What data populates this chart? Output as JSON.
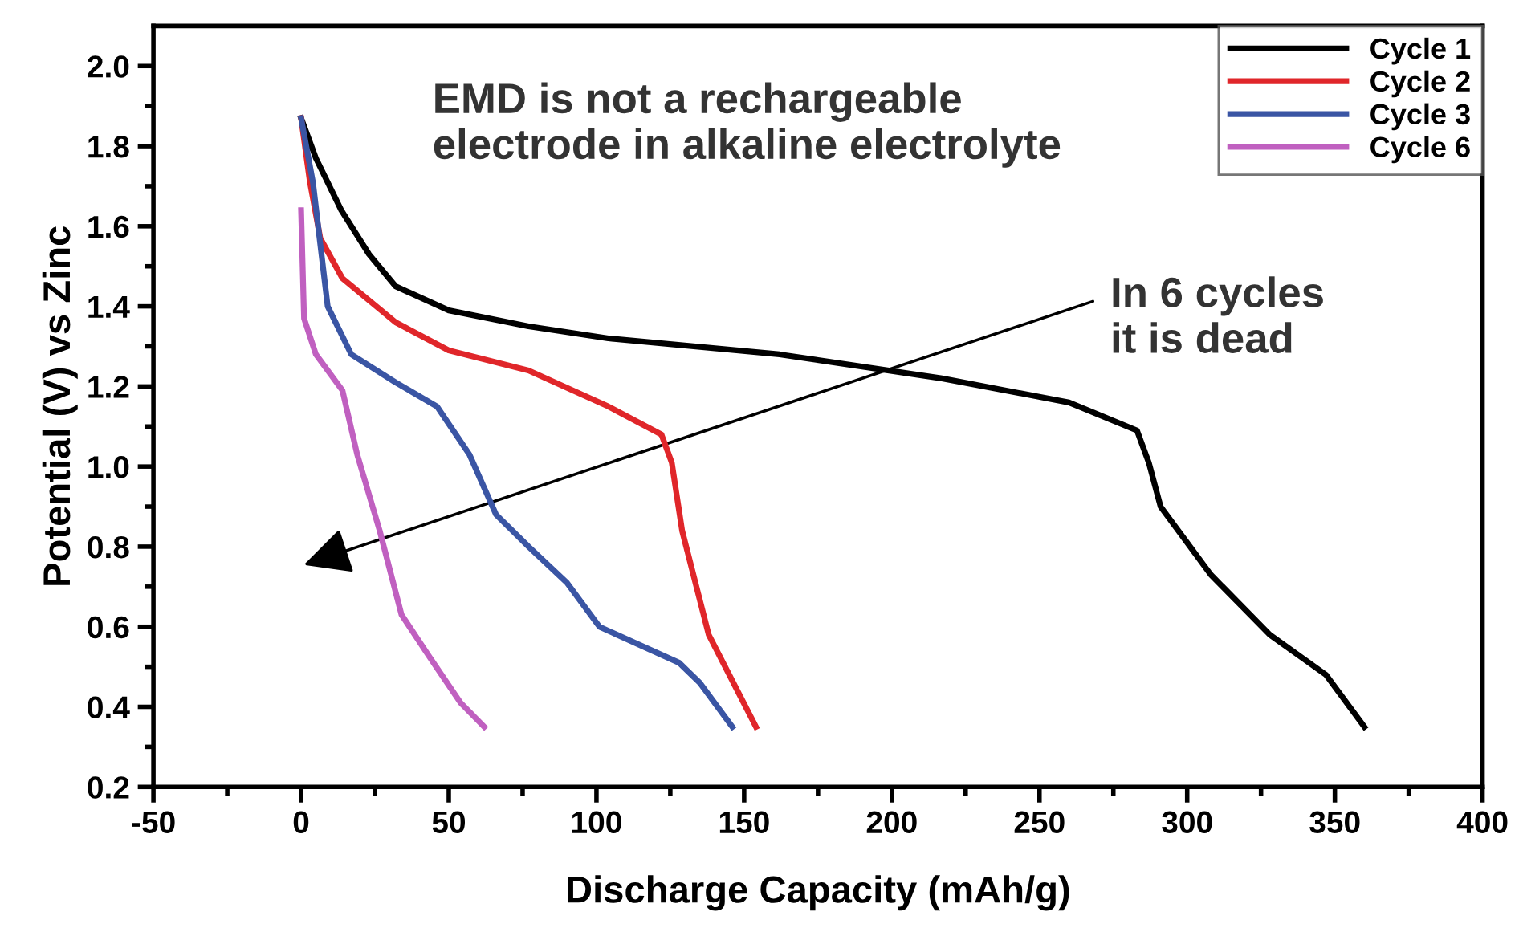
{
  "chart_data": {
    "type": "line",
    "xlabel": "Discharge Capacity (mAh/g)",
    "ylabel": "Potential (V) vs Zinc",
    "xlim": [
      -50,
      400
    ],
    "xticks": [
      -50,
      0,
      50,
      100,
      150,
      200,
      250,
      300,
      350,
      400
    ],
    "ylim": [
      0.2,
      2.1
    ],
    "yticks": [
      {
        "value": 0.2,
        "label": "0.2"
      },
      {
        "value": 0.4,
        "label": "0.4"
      },
      {
        "value": 0.6,
        "label": "0.6"
      },
      {
        "value": 0.8,
        "label": "0.8"
      },
      {
        "value": 1.0,
        "label": "1.0"
      },
      {
        "value": 1.2,
        "label": "1.2"
      },
      {
        "value": 1.4,
        "label": "1.4"
      },
      {
        "value": 1.6,
        "label": "1.6"
      },
      {
        "value": 1.8,
        "label": "1.8"
      },
      {
        "value": 2.0,
        "label": "2.0"
      }
    ],
    "grid": false,
    "legend": "top right",
    "marker": "none",
    "line_style": "solid",
    "annotations": [
      "EMD is not a rechargeable\nelectrode in alkaline electrolyte",
      "In 6 cycles\nit is dead"
    ],
    "series": [
      {
        "name": "Cycle 1",
        "color": "#000000",
        "x": [
          0,
          5,
          13.6,
          23,
          32,
          50,
          77,
          104,
          162,
          217,
          260,
          283,
          287,
          291,
          308,
          328,
          347,
          360
        ],
        "values": [
          1.87,
          1.77,
          1.64,
          1.53,
          1.45,
          1.39,
          1.35,
          1.32,
          1.28,
          1.22,
          1.16,
          1.09,
          1.01,
          0.9,
          0.73,
          0.58,
          0.48,
          0.35
        ]
      },
      {
        "name": "Cycle 2",
        "color": "#e0262a",
        "x": [
          0,
          3,
          6.5,
          14,
          32,
          50,
          77,
          104,
          122,
          125.5,
          129,
          138,
          154
        ],
        "values": [
          1.87,
          1.71,
          1.57,
          1.47,
          1.36,
          1.29,
          1.24,
          1.15,
          1.08,
          1.01,
          0.84,
          0.58,
          0.35
        ]
      },
      {
        "name": "Cycle 3",
        "color": "#3a55a4",
        "x": [
          0,
          4,
          9,
          17,
          32,
          46,
          57,
          66,
          77,
          90,
          101,
          128,
          135,
          146
        ],
        "values": [
          1.87,
          1.71,
          1.4,
          1.28,
          1.21,
          1.15,
          1.03,
          0.88,
          0.8,
          0.71,
          0.6,
          0.51,
          0.46,
          0.35
        ]
      },
      {
        "name": "Cycle 6",
        "color": "#c060c0",
        "x": [
          0,
          1,
          5,
          14,
          19,
          26.6,
          34,
          43,
          54,
          62
        ],
        "values": [
          1.64,
          1.37,
          1.28,
          1.19,
          1.03,
          0.84,
          0.63,
          0.53,
          0.41,
          0.35
        ]
      }
    ]
  }
}
